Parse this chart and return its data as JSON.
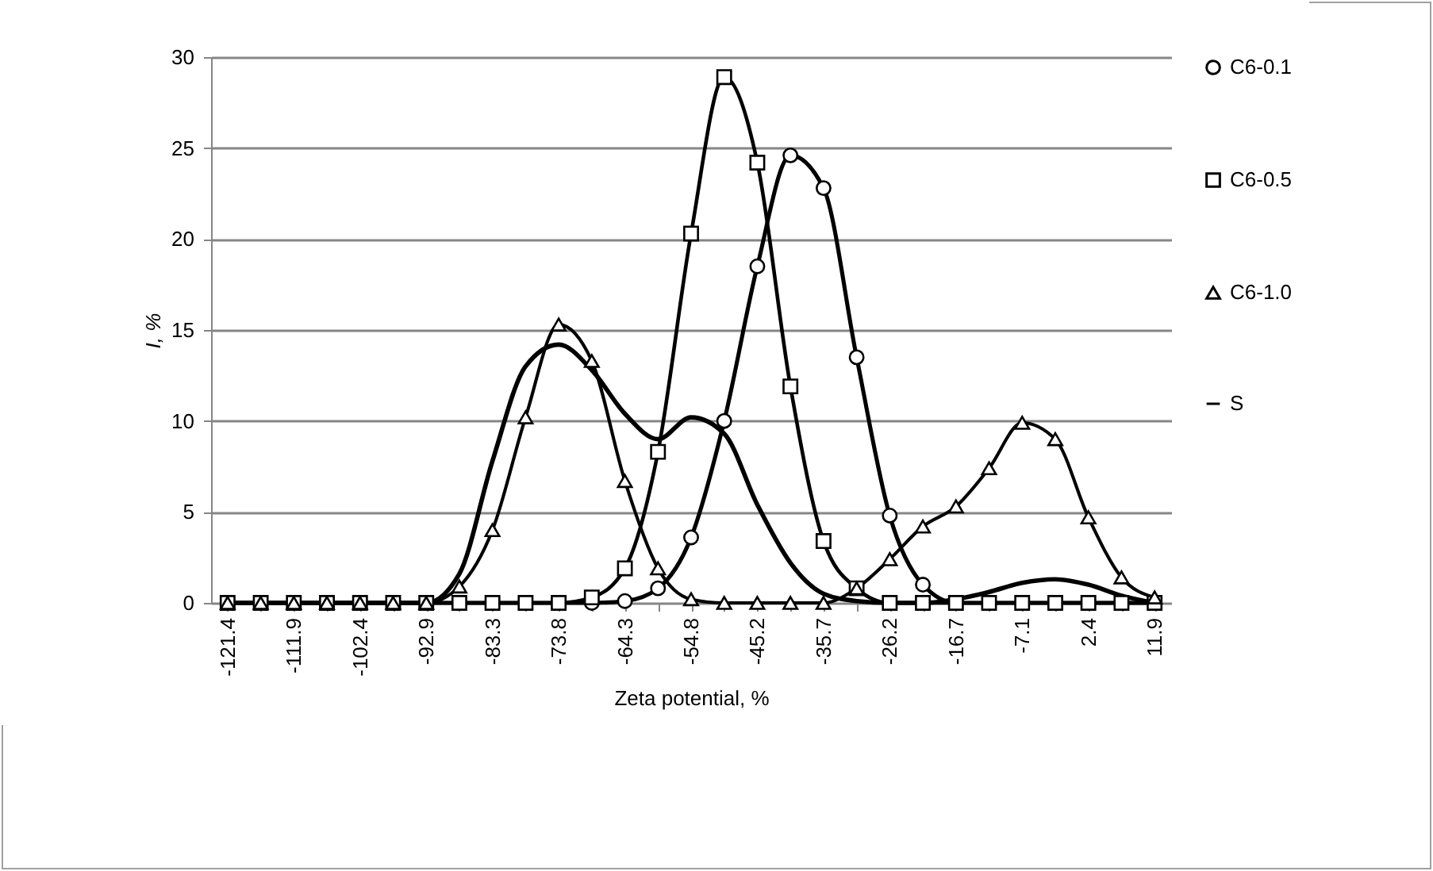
{
  "chart_data": {
    "type": "line",
    "xlabel": "Zeta potential, %",
    "ylabel": "I, %",
    "categories": [
      "-121.4",
      null,
      "-111.9",
      null,
      "-102.4",
      null,
      "-92.9",
      null,
      "-83.3",
      null,
      "-73.8",
      null,
      "-64.3",
      null,
      "-54.8",
      null,
      "-45.2",
      null,
      "-35.7",
      null,
      "-26.2",
      null,
      "-16.7",
      null,
      "-7.1",
      null,
      "2.4",
      null,
      "11.9"
    ],
    "series": [
      {
        "name": "C6-0.1",
        "color": "#000000",
        "marker": "circle",
        "values": [
          0,
          0,
          0,
          0,
          0,
          0,
          0,
          0,
          0,
          0,
          0,
          0,
          0.1,
          0.8,
          3.6,
          10.0,
          18.5,
          24.6,
          22.8,
          13.5,
          4.8,
          1.0,
          0,
          0,
          0,
          0,
          0,
          0,
          0
        ]
      },
      {
        "name": "C6-0.5",
        "color": "#000000",
        "marker": "square",
        "values": [
          0,
          0,
          0,
          0,
          0,
          0,
          0,
          0,
          0,
          0,
          0,
          0.3,
          1.9,
          8.3,
          20.3,
          28.9,
          24.2,
          11.9,
          3.4,
          0.8,
          0,
          0,
          0,
          0,
          0,
          0,
          0,
          0,
          0
        ]
      },
      {
        "name": "C6-1.0",
        "color": "#000000",
        "marker": "triangle",
        "values": [
          0,
          0,
          0,
          0,
          0,
          0,
          0,
          0.9,
          4.0,
          10.2,
          15.3,
          13.3,
          6.7,
          1.9,
          0.2,
          0,
          0,
          0,
          0,
          0.8,
          2.4,
          4.2,
          5.3,
          7.4,
          9.9,
          9.0,
          4.7,
          1.4,
          0.3
        ]
      },
      {
        "name": "S",
        "color": "#000000",
        "marker": "none",
        "values": [
          0,
          0,
          0,
          0,
          0,
          0,
          0,
          1.6,
          7.8,
          13.0,
          14.2,
          12.8,
          10.4,
          9.0,
          10.2,
          9.3,
          5.4,
          2.2,
          0.5,
          0.1,
          0,
          0,
          0.2,
          0.6,
          1.1,
          1.3,
          1.0,
          0.4,
          0
        ]
      }
    ],
    "ylim": [
      0,
      30
    ],
    "yticks": [
      0,
      5,
      10,
      15,
      20,
      25,
      30
    ],
    "grid": "y",
    "legend": "right"
  }
}
